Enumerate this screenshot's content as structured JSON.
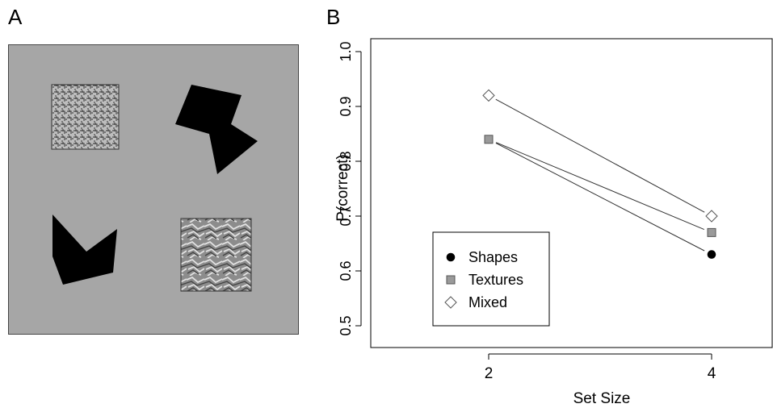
{
  "panels": {
    "a_label": "A",
    "b_label": "B"
  },
  "stimulus": {
    "background": "#a6a6a6",
    "items": [
      "texture-square",
      "black-polygon",
      "black-polygon",
      "texture-square"
    ]
  },
  "chart_data": {
    "type": "line",
    "xlabel": "Set Size",
    "ylabel": "P(correct)",
    "x": [
      2,
      4
    ],
    "ylim": [
      0.5,
      1.0
    ],
    "yticks": [
      0.5,
      0.6,
      0.7,
      0.8,
      0.9,
      1.0
    ],
    "grid": false,
    "legend_position": "bottom-left",
    "series": [
      {
        "name": "Shapes",
        "values": [
          0.84,
          0.63
        ],
        "marker": "filled-circle",
        "color": "#000000"
      },
      {
        "name": "Textures",
        "values": [
          0.84,
          0.67
        ],
        "marker": "filled-square",
        "color": "#9a9a9a"
      },
      {
        "name": "Mixed",
        "values": [
          0.92,
          0.7
        ],
        "marker": "open-diamond",
        "color": "#ffffff"
      }
    ]
  }
}
